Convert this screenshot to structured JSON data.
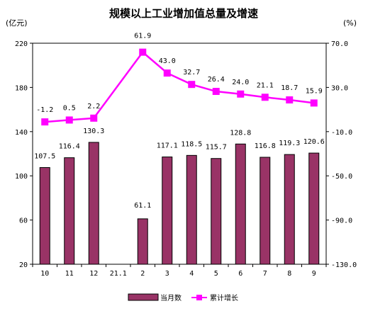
{
  "chart_data": {
    "type": "bar+line",
    "title": "规模以上工业增加值总量及增速",
    "left_axis_unit": "(亿元)",
    "right_axis_unit": "(%)",
    "categories": [
      "10",
      "11",
      "12",
      "21.1",
      "2",
      "3",
      "4",
      "5",
      "6",
      "7",
      "8",
      "9"
    ],
    "series": [
      {
        "name": "当月数",
        "type": "bar",
        "axis": "left",
        "color": "#993366",
        "values": [
          107.5,
          116.4,
          130.3,
          null,
          61.1,
          117.1,
          118.5,
          115.7,
          128.8,
          116.8,
          119.3,
          120.6
        ],
        "labels": [
          "107.5",
          "116.4",
          "130.3",
          "",
          "61.1",
          "117.1",
          "118.5",
          "115.7",
          "128.8",
          "116.8",
          "119.3",
          "120.6"
        ]
      },
      {
        "name": "累计增长",
        "type": "line",
        "axis": "right",
        "color": "#ff00ff",
        "values": [
          -1.2,
          0.5,
          2.2,
          null,
          61.9,
          43.0,
          32.7,
          26.4,
          24.0,
          21.1,
          18.7,
          15.9
        ],
        "labels": [
          "-1.2",
          "0.5",
          "2.2",
          "",
          "61.9",
          "43.0",
          "32.7",
          "26.4",
          "24.0",
          "21.1",
          "18.7",
          "15.9"
        ]
      }
    ],
    "left_axis": {
      "min": 20,
      "max": 220,
      "ticks": [
        "20",
        "60",
        "100",
        "140",
        "180",
        "220"
      ]
    },
    "right_axis": {
      "min": -130,
      "max": 70,
      "ticks": [
        "-130.0",
        "-90.0",
        "-50.0",
        "-10.0",
        "30.0",
        "70.0"
      ]
    },
    "grid": false,
    "legend_position": "bottom-center"
  }
}
